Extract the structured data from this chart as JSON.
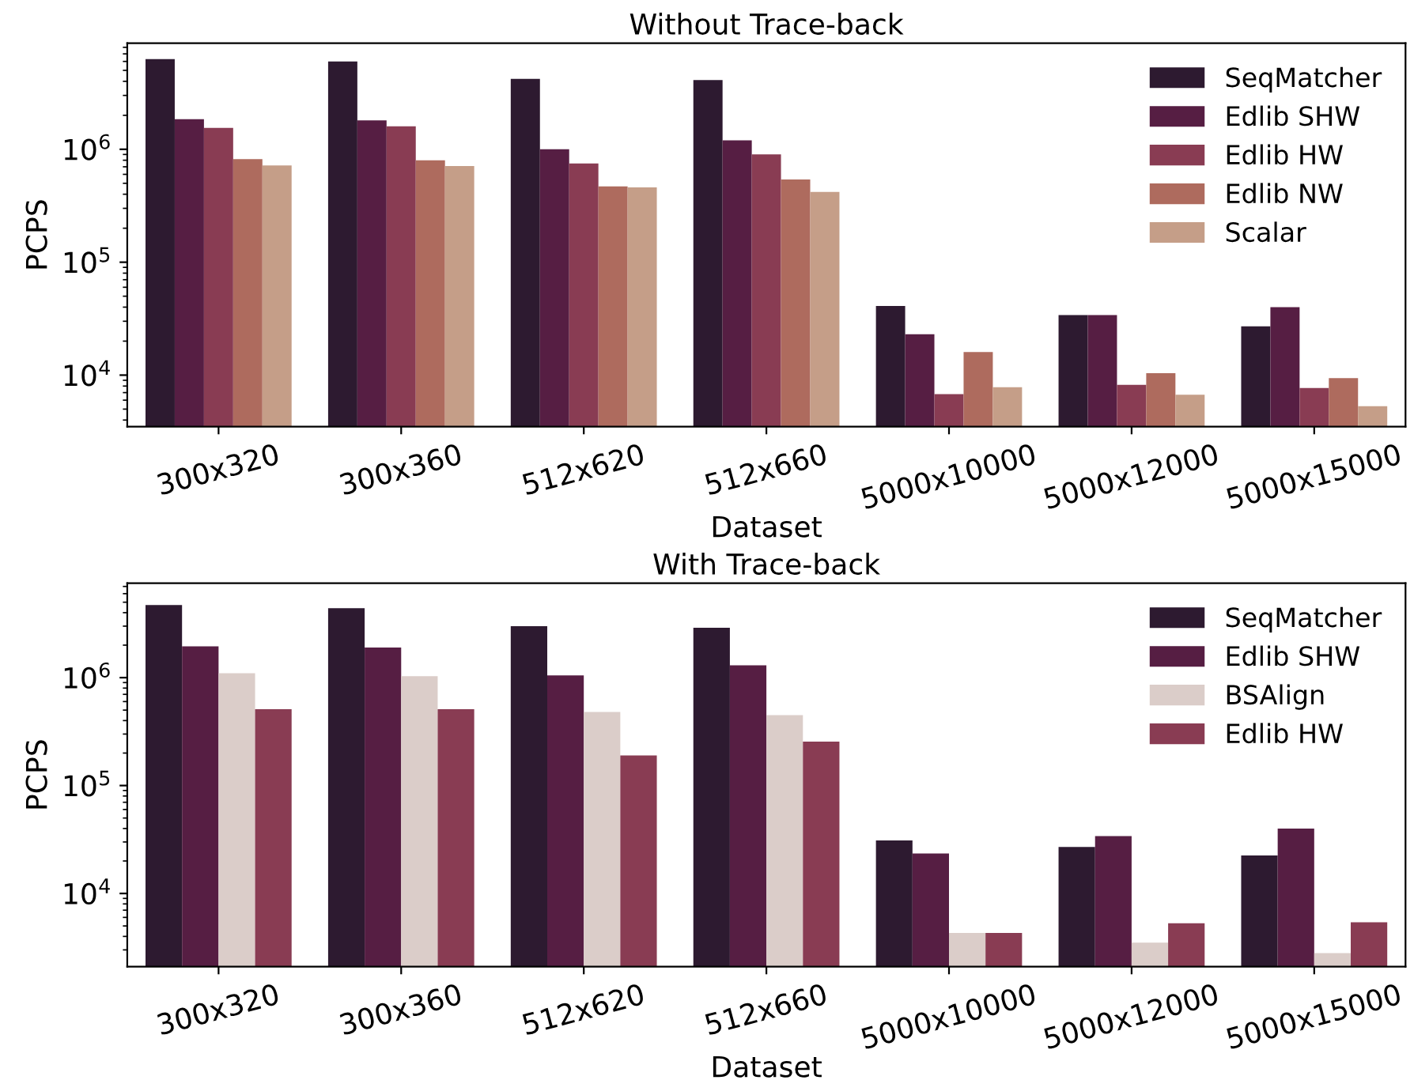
{
  "chart_data": [
    {
      "type": "bar",
      "title": "Without Trace-back",
      "xlabel": "Dataset",
      "ylabel": "PCPS",
      "log": "y",
      "legend": "top right",
      "grid": false,
      "categories": [
        "300x320",
        "300x360",
        "512x620",
        "512x660",
        "5000x10000",
        "5000x12000",
        "5000x15000"
      ],
      "ylim": [
        3500,
        8700000
      ],
      "yticks": [
        {
          "value": 10000,
          "label": "10$^{4}$"
        },
        {
          "value": 100000,
          "label": "10$^{5}$"
        },
        {
          "value": 1000000,
          "label": "10$^{6}$"
        }
      ],
      "series": [
        {
          "name": "SeqMatcher",
          "color": "#2d1a30",
          "values": [
            6300000,
            6000000,
            4200000,
            4100000,
            41000,
            34000,
            27000
          ]
        },
        {
          "name": "Edlib SHW",
          "color": "#561e43",
          "values": [
            1850000,
            1800000,
            1000000,
            1200000,
            23000,
            34000,
            40000
          ]
        },
        {
          "name": "Edlib HW",
          "color": "#893c53",
          "values": [
            1550000,
            1600000,
            750000,
            900000,
            6800,
            8200,
            7700
          ]
        },
        {
          "name": "Edlib NW",
          "color": "#ae6b5e",
          "values": [
            820000,
            800000,
            470000,
            540000,
            16000,
            10400,
            9400
          ]
        },
        {
          "name": "Scalar",
          "color": "#c59e88",
          "values": [
            720000,
            710000,
            460000,
            420000,
            7800,
            6700,
            5300
          ]
        }
      ]
    },
    {
      "type": "bar",
      "title": "With Trace-back",
      "xlabel": "Dataset",
      "ylabel": "PCPS",
      "log": "y",
      "legend": "top right",
      "grid": false,
      "categories": [
        "300x320",
        "300x360",
        "512x620",
        "512x660",
        "5000x10000",
        "5000x12000",
        "5000x15000"
      ],
      "ylim": [
        2100,
        7500000
      ],
      "yticks": [
        {
          "value": 10000,
          "label": "10$^{4}$"
        },
        {
          "value": 100000,
          "label": "10$^{5}$"
        },
        {
          "value": 1000000,
          "label": "10$^{6}$"
        }
      ],
      "series": [
        {
          "name": "SeqMatcher",
          "color": "#2d1a30",
          "values": [
            4700000,
            4400000,
            3000000,
            2900000,
            31000,
            27000,
            22500
          ]
        },
        {
          "name": "Edlib SHW",
          "color": "#561e43",
          "values": [
            1950000,
            1900000,
            1050000,
            1300000,
            23500,
            34000,
            40000
          ]
        },
        {
          "name": "BSAlign",
          "color": "#dbcdc9",
          "values": [
            1100000,
            1030000,
            480000,
            450000,
            4300,
            3500,
            2800
          ]
        },
        {
          "name": "Edlib HW",
          "color": "#893c53",
          "values": [
            510000,
            510000,
            190000,
            255000,
            4300,
            5300,
            5400
          ]
        }
      ]
    }
  ]
}
